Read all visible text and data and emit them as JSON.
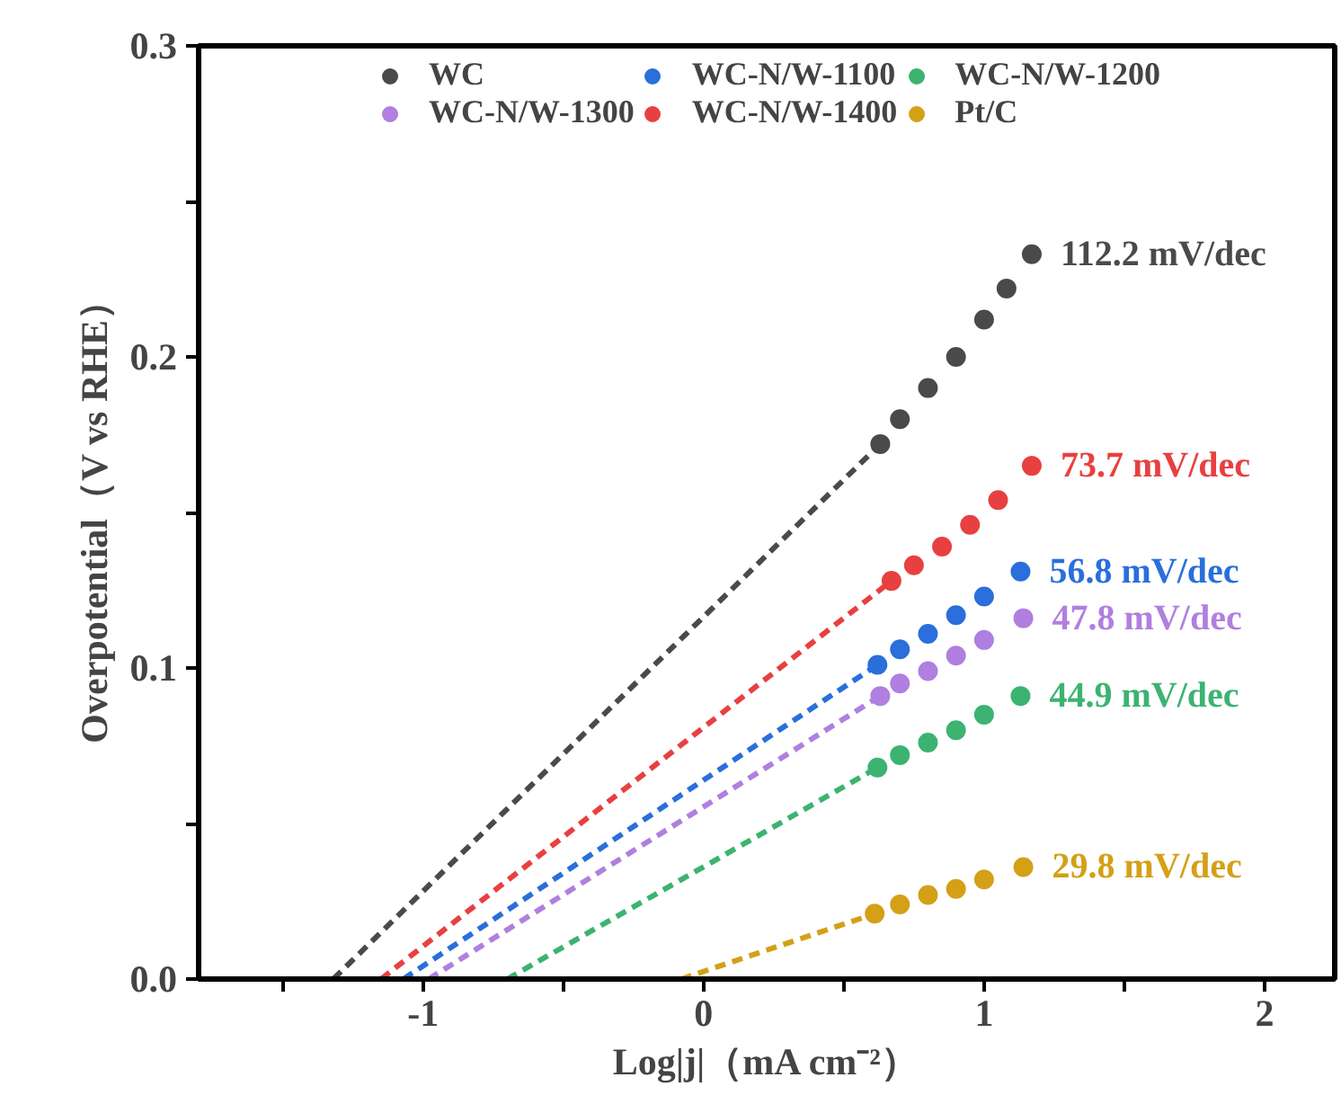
{
  "chart_data": {
    "type": "scatter",
    "xlabel": "Log|j|（mA cm⁻²）",
    "ylabel": "Overpotential（V vs RHE）",
    "xlim": [
      -1.8,
      2.25
    ],
    "ylim": [
      0,
      0.3
    ],
    "xticks": [
      {
        "value": -1.5,
        "label": null
      },
      -1,
      {
        "value": -0.5,
        "label": null
      },
      0,
      {
        "value": 0.5,
        "label": null
      },
      1,
      {
        "value": 1.5,
        "label": null
      },
      2
    ],
    "yticks": [
      {
        "value": 0,
        "label": "0.0"
      },
      {
        "value": 0.05,
        "label": null
      },
      {
        "value": 0.1,
        "label": "0.1"
      },
      {
        "value": 0.15,
        "label": null
      },
      {
        "value": 0.2,
        "label": "0.2"
      },
      {
        "value": 0.25,
        "label": null
      },
      {
        "value": 0.3,
        "label": "0.3"
      }
    ],
    "grid": false,
    "legend": "top",
    "marker": "circle",
    "series": [
      {
        "name": "WC",
        "color": "#4a4a4a",
        "x": [
          0.63,
          0.7,
          0.8,
          0.9,
          1.0,
          1.08,
          1.17
        ],
        "values": [
          0.172,
          0.18,
          0.19,
          0.2,
          0.212,
          0.222,
          0.233
        ]
      },
      {
        "name": "WC-N/W-1100",
        "color": "#2a6fdb",
        "x": [
          0.62,
          0.7,
          0.8,
          0.9,
          1.0,
          1.13
        ],
        "values": [
          0.101,
          0.106,
          0.111,
          0.117,
          0.123,
          0.131
        ]
      },
      {
        "name": "WC-N/W-1200",
        "color": "#3cb371",
        "x": [
          0.62,
          0.7,
          0.8,
          0.9,
          1.0,
          1.13
        ],
        "values": [
          0.068,
          0.072,
          0.076,
          0.08,
          0.085,
          0.091
        ]
      },
      {
        "name": "WC-N/W-1300",
        "color": "#b07fe0",
        "x": [
          0.63,
          0.7,
          0.8,
          0.9,
          1.0,
          1.14
        ],
        "values": [
          0.091,
          0.095,
          0.099,
          0.104,
          0.109,
          0.116
        ]
      },
      {
        "name": "WC-N/W-1400",
        "color": "#e84040",
        "x": [
          0.67,
          0.75,
          0.85,
          0.95,
          1.05,
          1.17
        ],
        "values": [
          0.128,
          0.133,
          0.139,
          0.146,
          0.154,
          0.165
        ]
      },
      {
        "name": "Pt/C",
        "color": "#d4a017",
        "x": [
          0.61,
          0.7,
          0.8,
          0.9,
          1.0,
          1.14
        ],
        "values": [
          0.021,
          0.024,
          0.027,
          0.029,
          0.032,
          0.036
        ]
      },
      {
        "type": "line",
        "line_style": "dashed",
        "marker": "none",
        "color": "#4a4a4a",
        "x": [
          -1.32,
          0.63
        ],
        "values": [
          0,
          0.172
        ]
      },
      {
        "type": "line",
        "line_style": "dashed",
        "marker": "none",
        "color": "#2a6fdb",
        "x": [
          -1.07,
          0.62
        ],
        "values": [
          0,
          0.101
        ]
      },
      {
        "type": "line",
        "line_style": "dashed",
        "marker": "none",
        "color": "#3cb371",
        "x": [
          -0.7,
          0.62
        ],
        "values": [
          0,
          0.068
        ]
      },
      {
        "type": "line",
        "line_style": "dashed",
        "marker": "none",
        "color": "#b07fe0",
        "x": [
          -0.98,
          0.63
        ],
        "values": [
          0,
          0.091
        ]
      },
      {
        "type": "line",
        "line_style": "dashed",
        "marker": "none",
        "color": "#e84040",
        "x": [
          -1.15,
          0.67
        ],
        "values": [
          0,
          0.128
        ]
      },
      {
        "type": "line",
        "line_style": "dashed",
        "marker": "none",
        "color": "#d4a017",
        "x": [
          -0.08,
          0.61
        ],
        "values": [
          0,
          0.021
        ]
      }
    ],
    "annotations": [
      "112.2 mV/dec",
      "56.8 mV/dec",
      "44.9 mV/dec",
      "47.8 mV/dec",
      "73.7 mV/dec",
      "29.8 mV/dec"
    ]
  }
}
